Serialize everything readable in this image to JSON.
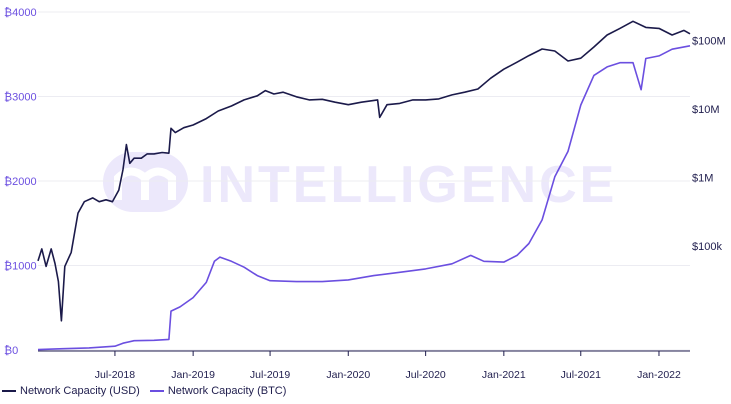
{
  "chart_data": {
    "type": "line",
    "title": "",
    "xlabel": "",
    "ylabel": "",
    "watermark": "INTELLIGENCE",
    "x_range": [
      "2018-01-01",
      "2022-03-15"
    ],
    "x_ticks": [
      {
        "date": "2018-07-01",
        "label": "Jul-2018"
      },
      {
        "date": "2019-01-01",
        "label": "Jan-2019"
      },
      {
        "date": "2019-07-01",
        "label": "Jul-2019"
      },
      {
        "date": "2020-01-01",
        "label": "Jan-2020"
      },
      {
        "date": "2020-07-01",
        "label": "Jul-2020"
      },
      {
        "date": "2021-01-01",
        "label": "Jan-2021"
      },
      {
        "date": "2021-07-01",
        "label": "Jul-2021"
      },
      {
        "date": "2022-01-01",
        "label": "Jan-2022"
      }
    ],
    "y_left": {
      "range": [
        0,
        4000
      ],
      "ticks": [
        {
          "value": 0,
          "label": "₿0"
        },
        {
          "value": 1000,
          "label": "₿1000"
        },
        {
          "value": 2000,
          "label": "₿2000"
        },
        {
          "value": 3000,
          "label": "₿3000"
        },
        {
          "value": 4000,
          "label": "₿4000"
        }
      ],
      "color": "#6b4fe0"
    },
    "y_right": {
      "scale": "log",
      "range": [
        3000,
        260000000
      ],
      "ticks": [
        {
          "value": 100000,
          "label": "$100k"
        },
        {
          "value": 1000000,
          "label": "$1M"
        },
        {
          "value": 10000000,
          "label": "$10M"
        },
        {
          "value": 100000000,
          "label": "$100M"
        }
      ],
      "color": "#1f1d4d"
    },
    "series": [
      {
        "name": "Network Capacity (USD)",
        "axis": "right",
        "color": "#1b1a4a",
        "points": [
          [
            "2018-01-01",
            60000
          ],
          [
            "2018-01-10",
            90000
          ],
          [
            "2018-01-20",
            50000
          ],
          [
            "2018-02-01",
            90000
          ],
          [
            "2018-02-10",
            55000
          ],
          [
            "2018-02-18",
            30000
          ],
          [
            "2018-02-25",
            8000
          ],
          [
            "2018-03-05",
            50000
          ],
          [
            "2018-03-20",
            80000
          ],
          [
            "2018-04-05",
            300000
          ],
          [
            "2018-04-20",
            440000
          ],
          [
            "2018-05-10",
            500000
          ],
          [
            "2018-05-25",
            440000
          ],
          [
            "2018-06-10",
            470000
          ],
          [
            "2018-06-25",
            440000
          ],
          [
            "2018-07-10",
            650000
          ],
          [
            "2018-07-20",
            1300000
          ],
          [
            "2018-07-28",
            3000000
          ],
          [
            "2018-08-05",
            1600000
          ],
          [
            "2018-08-15",
            1900000
          ],
          [
            "2018-09-01",
            1900000
          ],
          [
            "2018-09-15",
            2200000
          ],
          [
            "2018-10-01",
            2200000
          ],
          [
            "2018-10-20",
            2300000
          ],
          [
            "2018-11-05",
            2250000
          ],
          [
            "2018-11-10",
            5200000
          ],
          [
            "2018-11-20",
            4500000
          ],
          [
            "2018-12-10",
            5300000
          ],
          [
            "2019-01-01",
            5800000
          ],
          [
            "2019-02-01",
            7200000
          ],
          [
            "2019-03-01",
            9300000
          ],
          [
            "2019-04-01",
            11000000
          ],
          [
            "2019-05-01",
            13500000
          ],
          [
            "2019-06-01",
            15500000
          ],
          [
            "2019-06-20",
            18500000
          ],
          [
            "2019-07-10",
            16500000
          ],
          [
            "2019-08-01",
            17500000
          ],
          [
            "2019-09-01",
            15000000
          ],
          [
            "2019-10-01",
            13500000
          ],
          [
            "2019-11-01",
            13800000
          ],
          [
            "2019-12-01",
            12500000
          ],
          [
            "2020-01-01",
            11500000
          ],
          [
            "2020-02-01",
            12500000
          ],
          [
            "2020-03-10",
            13500000
          ],
          [
            "2020-03-15",
            7500000
          ],
          [
            "2020-04-01",
            11500000
          ],
          [
            "2020-05-01",
            12000000
          ],
          [
            "2020-06-01",
            13500000
          ],
          [
            "2020-07-01",
            13500000
          ],
          [
            "2020-08-01",
            14000000
          ],
          [
            "2020-09-01",
            16000000
          ],
          [
            "2020-10-01",
            17500000
          ],
          [
            "2020-11-01",
            19500000
          ],
          [
            "2020-12-01",
            28000000
          ],
          [
            "2021-01-01",
            38000000
          ],
          [
            "2021-02-01",
            48000000
          ],
          [
            "2021-03-01",
            60000000
          ],
          [
            "2021-04-01",
            75000000
          ],
          [
            "2021-05-01",
            70000000
          ],
          [
            "2021-06-01",
            50000000
          ],
          [
            "2021-07-01",
            55000000
          ],
          [
            "2021-08-01",
            80000000
          ],
          [
            "2021-09-01",
            120000000
          ],
          [
            "2021-10-01",
            150000000
          ],
          [
            "2021-11-01",
            190000000
          ],
          [
            "2021-12-01",
            155000000
          ],
          [
            "2022-01-01",
            150000000
          ],
          [
            "2022-02-01",
            120000000
          ],
          [
            "2022-03-01",
            140000000
          ],
          [
            "2022-03-15",
            125000000
          ]
        ]
      },
      {
        "name": "Network Capacity (BTC)",
        "axis": "left",
        "color": "#6b4fe0",
        "points": [
          [
            "2018-01-01",
            5
          ],
          [
            "2018-03-01",
            15
          ],
          [
            "2018-05-01",
            25
          ],
          [
            "2018-07-01",
            45
          ],
          [
            "2018-07-20",
            80
          ],
          [
            "2018-08-15",
            110
          ],
          [
            "2018-10-01",
            115
          ],
          [
            "2018-11-05",
            125
          ],
          [
            "2018-11-10",
            460
          ],
          [
            "2018-12-01",
            510
          ],
          [
            "2019-01-01",
            620
          ],
          [
            "2019-02-01",
            800
          ],
          [
            "2019-02-20",
            1050
          ],
          [
            "2019-03-05",
            1100
          ],
          [
            "2019-04-01",
            1050
          ],
          [
            "2019-05-01",
            980
          ],
          [
            "2019-06-01",
            880
          ],
          [
            "2019-07-01",
            820
          ],
          [
            "2019-09-01",
            810
          ],
          [
            "2019-11-01",
            810
          ],
          [
            "2020-01-01",
            830
          ],
          [
            "2020-03-01",
            880
          ],
          [
            "2020-05-01",
            920
          ],
          [
            "2020-07-01",
            960
          ],
          [
            "2020-09-01",
            1020
          ],
          [
            "2020-10-15",
            1120
          ],
          [
            "2020-11-15",
            1050
          ],
          [
            "2021-01-01",
            1040
          ],
          [
            "2021-02-01",
            1120
          ],
          [
            "2021-03-01",
            1260
          ],
          [
            "2021-04-01",
            1540
          ],
          [
            "2021-05-01",
            2050
          ],
          [
            "2021-06-01",
            2350
          ],
          [
            "2021-07-01",
            2900
          ],
          [
            "2021-08-01",
            3250
          ],
          [
            "2021-09-01",
            3350
          ],
          [
            "2021-10-01",
            3400
          ],
          [
            "2021-11-01",
            3400
          ],
          [
            "2021-11-20",
            3080
          ],
          [
            "2021-12-01",
            3450
          ],
          [
            "2022-01-01",
            3480
          ],
          [
            "2022-02-01",
            3560
          ],
          [
            "2022-03-15",
            3600
          ]
        ]
      }
    ]
  }
}
